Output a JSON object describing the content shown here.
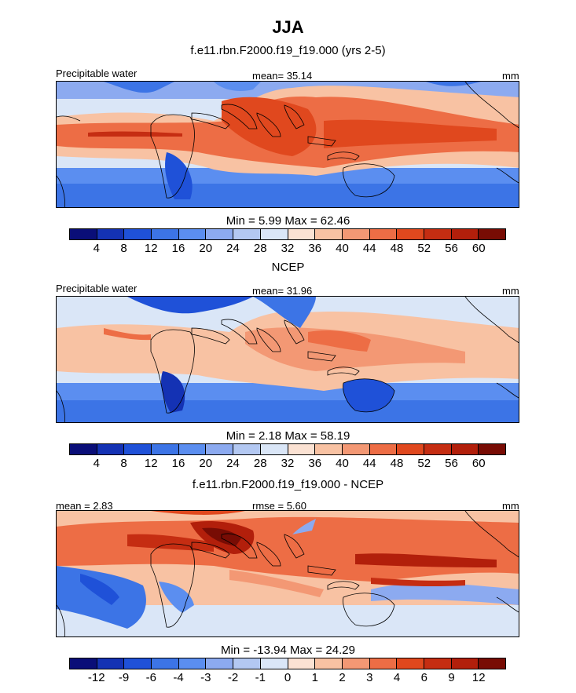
{
  "title": "JJA",
  "panels": [
    {
      "subtitle": "f.e11.rbn.F2000.f19_f19.000 (yrs 2-5)",
      "left_label": "Precipitable water",
      "center_label": "mean=  35.14",
      "right_label": "mm",
      "min_max": "Min =   5.99 Max =  62.46",
      "ticks": [
        "4",
        "8",
        "12",
        "16",
        "20",
        "24",
        "28",
        "32",
        "36",
        "40",
        "44",
        "48",
        "52",
        "56",
        "60"
      ]
    },
    {
      "subtitle": "NCEP",
      "left_label": "Precipitable water",
      "center_label": "mean=  31.96",
      "right_label": "mm",
      "min_max": "Min =   2.18 Max =  58.19",
      "ticks": [
        "4",
        "8",
        "12",
        "16",
        "20",
        "24",
        "28",
        "32",
        "36",
        "40",
        "44",
        "48",
        "52",
        "56",
        "60"
      ]
    },
    {
      "subtitle": "f.e11.rbn.F2000.f19_f19.000 - NCEP",
      "left_label": "mean =   2.83",
      "center_label": "rmse =   5.60",
      "right_label": "mm",
      "min_max": "Min = -13.94 Max =  24.29",
      "ticks": [
        "-12",
        "-9",
        "-6",
        "-4",
        "-3",
        "-2",
        "-1",
        "0",
        "1",
        "2",
        "3",
        "4",
        "6",
        "9",
        "12"
      ]
    }
  ],
  "colors": {
    "palette": [
      "#0a0e78",
      "#1432b4",
      "#1f51d8",
      "#3c74e6",
      "#5b8ef0",
      "#8caaf0",
      "#b3c8f2",
      "#dae6f7",
      "#fbe2d3",
      "#f8c2a3",
      "#f39874",
      "#ed6d45",
      "#e0481e",
      "#c52d12",
      "#b21f0b",
      "#780c04"
    ]
  },
  "chart_data": [
    {
      "type": "heatmap",
      "title": "f.e11.rbn.F2000.f19_f19.000 (yrs 2-5)",
      "variable": "Precipitable water",
      "units": "mm",
      "mean": 35.14,
      "min": 5.99,
      "max": 62.46,
      "levels": [
        4,
        8,
        12,
        16,
        20,
        24,
        28,
        32,
        36,
        40,
        44,
        48,
        52,
        56,
        60
      ],
      "field_description": "tropical moist band across Indian Ocean, Maritime Continent and Pacific; dry subtropics"
    },
    {
      "type": "heatmap",
      "title": "NCEP",
      "variable": "Precipitable water",
      "units": "mm",
      "mean": 31.96,
      "min": 2.18,
      "max": 58.19,
      "levels": [
        4,
        8,
        12,
        16,
        20,
        24,
        28,
        32,
        36,
        40,
        44,
        48,
        52,
        56,
        60
      ]
    },
    {
      "type": "heatmap",
      "title": "f.e11.rbn.F2000.f19_f19.000 - NCEP",
      "units": "mm",
      "mean": 2.83,
      "rmse": 5.6,
      "min": -13.94,
      "max": 24.29,
      "levels": [
        -12,
        -9,
        -6,
        -4,
        -3,
        -2,
        -1,
        0,
        1,
        2,
        3,
        4,
        6,
        9,
        12
      ]
    }
  ]
}
